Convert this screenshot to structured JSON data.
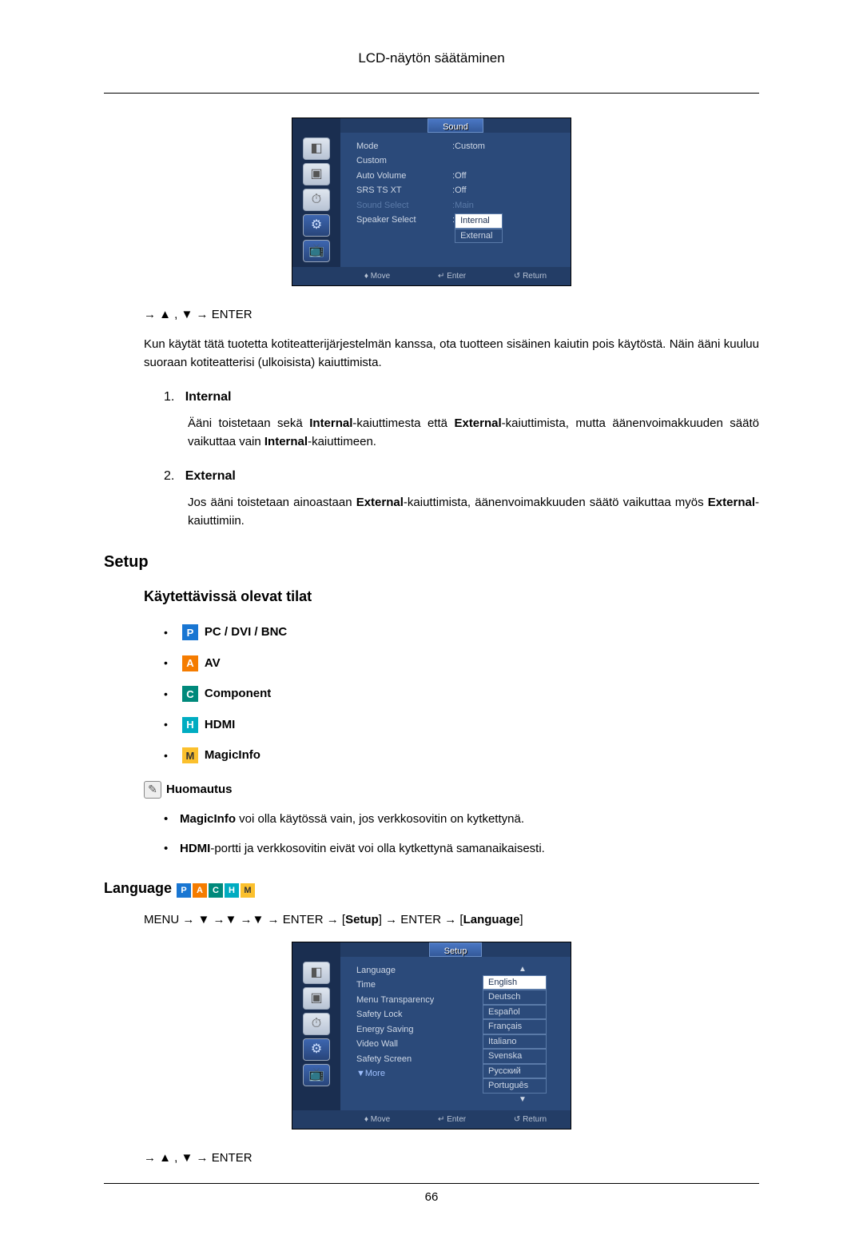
{
  "header": {
    "title": "LCD-näytön säätäminen"
  },
  "osd_sound": {
    "tab": "Sound",
    "rows": [
      {
        "label": "Mode",
        "value": "Custom",
        "dim": false
      },
      {
        "label": "Custom",
        "value": "",
        "dim": false
      },
      {
        "label": "Auto Volume",
        "value": "Off",
        "dim": false
      },
      {
        "label": "SRS TS XT",
        "value": "Off",
        "dim": false
      },
      {
        "label": "Sound Select",
        "value": "Main",
        "dim": true
      },
      {
        "label": "Speaker Select",
        "value": "",
        "dim": false
      }
    ],
    "speaker_options": {
      "selected": "Internal",
      "other": "External"
    },
    "footer": {
      "move": "Move",
      "enter": "Enter",
      "return": "Return"
    }
  },
  "nav1": "→ ▲ , ▼ → ENTER",
  "intro_para": "Kun käytät tätä tuotetta kotiteatterijärjestelmän kanssa, ota tuotteen sisäinen kaiutin pois käytöstä. Näin ääni kuuluu suoraan kotiteatterisi (ulkoisista) kaiuttimista.",
  "list": {
    "item1_num": "1.",
    "item1_label": "Internal",
    "item1_body_a": "Ääni toistetaan sekä ",
    "item1_body_b": "Internal",
    "item1_body_c": "-kaiuttimesta että ",
    "item1_body_d": "External",
    "item1_body_e": "-kaiuttimista, mutta äänenvoimakkuuden säätö vaikuttaa vain ",
    "item1_body_f": "Internal",
    "item1_body_g": "-kaiuttimeen.",
    "item2_num": "2.",
    "item2_label": "External",
    "item2_body_a": "Jos ääni toistetaan ainoastaan ",
    "item2_body_b": "External",
    "item2_body_c": "-kaiuttimista, äänenvoimakkuuden säätö vaikuttaa myös ",
    "item2_body_d": "External",
    "item2_body_e": "-kaiuttimiin."
  },
  "setup": {
    "heading": "Setup",
    "subheading": "Käytettävissä olevat tilat",
    "modes": [
      {
        "badge": "P",
        "cls": "badge-P",
        "label": "PC / DVI / BNC"
      },
      {
        "badge": "A",
        "cls": "badge-A",
        "label": "AV"
      },
      {
        "badge": "C",
        "cls": "badge-C",
        "label": "Component"
      },
      {
        "badge": "H",
        "cls": "badge-H",
        "label": "HDMI"
      },
      {
        "badge": "M",
        "cls": "badge-M",
        "label": "MagicInfo"
      }
    ],
    "note_label": "Huomautus",
    "notes": {
      "n1a": "MagicInfo",
      "n1b": " voi olla käytössä vain, jos verkkosovitin on kytkettynä.",
      "n2a": "HDMI",
      "n2b": "-portti ja verkkosovitin eivät voi olla kytkettynä samanaikaisesti."
    }
  },
  "language": {
    "heading": "Language",
    "path_prefix": "MENU → ▼ →▼ →▼ → ENTER → [",
    "path_setup": "Setup",
    "path_mid": "] → ENTER → [",
    "path_lang": "Language",
    "path_suffix": "]"
  },
  "osd_setup": {
    "tab": "Setup",
    "items": [
      "Language",
      "Time",
      "Menu Transparency",
      "Safety Lock",
      "Energy Saving",
      "Video Wall",
      "Safety Screen"
    ],
    "more": "More",
    "langs": [
      "English",
      "Deutsch",
      "Español",
      "Français",
      "Italiano",
      "Svenska",
      "Русский",
      "Português"
    ],
    "selected_lang": "English",
    "footer": {
      "move": "Move",
      "enter": "Enter",
      "return": "Return"
    }
  },
  "nav2": "→ ▲ , ▼ → ENTER",
  "pagenum": "66"
}
